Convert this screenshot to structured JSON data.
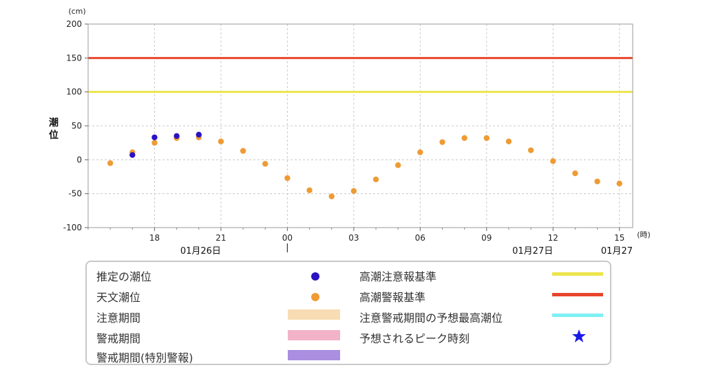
{
  "chart_data": {
    "type": "scatter",
    "unit_label": "(cm)",
    "ylabel": "潮位",
    "x_unit_label": "(時)",
    "ylim": [
      -100,
      200
    ],
    "yticks": [
      200,
      150,
      100,
      50,
      0,
      -50,
      -100
    ],
    "xlim": [
      15,
      39.6
    ],
    "xticks": [
      {
        "x": 18,
        "label": "18"
      },
      {
        "x": 21,
        "label": "21"
      },
      {
        "x": 24,
        "label": "00"
      },
      {
        "x": 27,
        "label": "03"
      },
      {
        "x": 30,
        "label": "06"
      },
      {
        "x": 33,
        "label": "09"
      },
      {
        "x": 36,
        "label": "12"
      },
      {
        "x": 39,
        "label": "15"
      }
    ],
    "date_labels": [
      {
        "x": 21,
        "label": "01月26日"
      },
      {
        "x": 36,
        "label": "01月27日"
      },
      {
        "x": 39.6,
        "label": "01月27"
      }
    ],
    "thresholds": [
      {
        "name": "高潮警報基準",
        "value": 150,
        "color": "#e8452c"
      },
      {
        "name": "高潮注意報基準",
        "value": 100,
        "color": "#ede44b"
      }
    ],
    "series": [
      {
        "name": "天文潮位",
        "color": "#ee9b34",
        "x": [
          16,
          17,
          18,
          19,
          20,
          21,
          22,
          23,
          24,
          25,
          26,
          27,
          28,
          29,
          30,
          31,
          32,
          33,
          34,
          35,
          36,
          37,
          38,
          39
        ],
        "y": [
          -5,
          11,
          25,
          32,
          33,
          27,
          13,
          -6,
          -27,
          -45,
          -54,
          -46,
          -29,
          -8,
          11,
          26,
          32,
          32,
          27,
          14,
          -2,
          -20,
          -32,
          -35
        ]
      },
      {
        "name": "推定の潮位",
        "color": "#2a13c2",
        "x": [
          17,
          18,
          19,
          20
        ],
        "y": [
          7,
          33,
          35,
          37
        ]
      }
    ]
  },
  "legend": {
    "estimated_tide": {
      "label": "推定の潮位",
      "color": "#2a13c2",
      "icon": "circle"
    },
    "astronomical_tide": {
      "label": "天文潮位",
      "color": "#ee9b34",
      "icon": "circle"
    },
    "caution_period": {
      "label": "注意期間",
      "color": "#f8ddb4"
    },
    "warning_period": {
      "label": "警戒期間",
      "color": "#f2b3c9"
    },
    "special_warning_period": {
      "label": "警戒期間(特別警報)",
      "color": "#aa8ee0"
    },
    "advisory_standard": {
      "label": "高潮注意報基準",
      "color": "#ede44b"
    },
    "warning_standard": {
      "label": "高潮警報基準",
      "color": "#e8452c"
    },
    "max_tide_line": {
      "label": "注意警戒期間の予想最高潮位",
      "color": "#7df0f3"
    },
    "peak_time": {
      "label": "予想されるピーク時刻",
      "color": "#1a1ae6",
      "icon": "star"
    }
  }
}
